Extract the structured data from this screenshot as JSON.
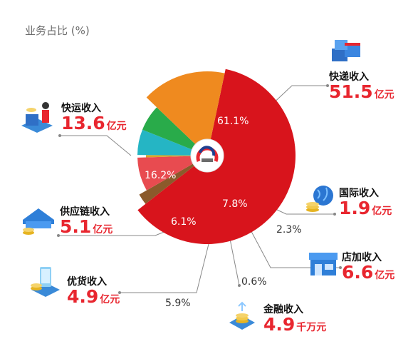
{
  "title": "业务占比 (%)",
  "colors": {
    "accent_red": "#e8262f",
    "connector": "#888888"
  },
  "chart_data": {
    "type": "pie",
    "subtype": "rose",
    "title": "业务占比 (%)",
    "series": [
      {
        "name": "快递收入",
        "percent": 61.1,
        "revenue": "51.5",
        "unit": "亿元",
        "color": "#d8141c",
        "icon": "parcel-boxes-icon"
      },
      {
        "name": "国际收入",
        "percent": 2.3,
        "revenue": "1.9",
        "unit": "亿元",
        "color": "#8b5a2b",
        "icon": "globe-coins-icon"
      },
      {
        "name": "店加收入",
        "percent": 7.8,
        "revenue": "6.6",
        "unit": "亿元",
        "color": "#e84b50",
        "icon": "storefront-icon"
      },
      {
        "name": "金融收入",
        "percent": 0.6,
        "revenue": "4.9",
        "unit": "千万元",
        "color": "#d9a526",
        "icon": "coin-stack-icon"
      },
      {
        "name": "优货收入",
        "percent": 5.9,
        "revenue": "4.9",
        "unit": "亿元",
        "color": "#25b5c4",
        "icon": "phone-coins-icon"
      },
      {
        "name": "供应链收入",
        "percent": 6.1,
        "revenue": "5.1",
        "unit": "亿元",
        "color": "#29ab4a",
        "icon": "warehouse-icon"
      },
      {
        "name": "快运收入",
        "percent": 16.2,
        "revenue": "13.6",
        "unit": "亿元",
        "color": "#ef8a1f",
        "icon": "delivery-person-icon"
      }
    ],
    "percent_labels": [
      "61.1%",
      "2.3%",
      "7.8%",
      "0.6%",
      "5.9%",
      "6.1%",
      "16.2%"
    ]
  }
}
